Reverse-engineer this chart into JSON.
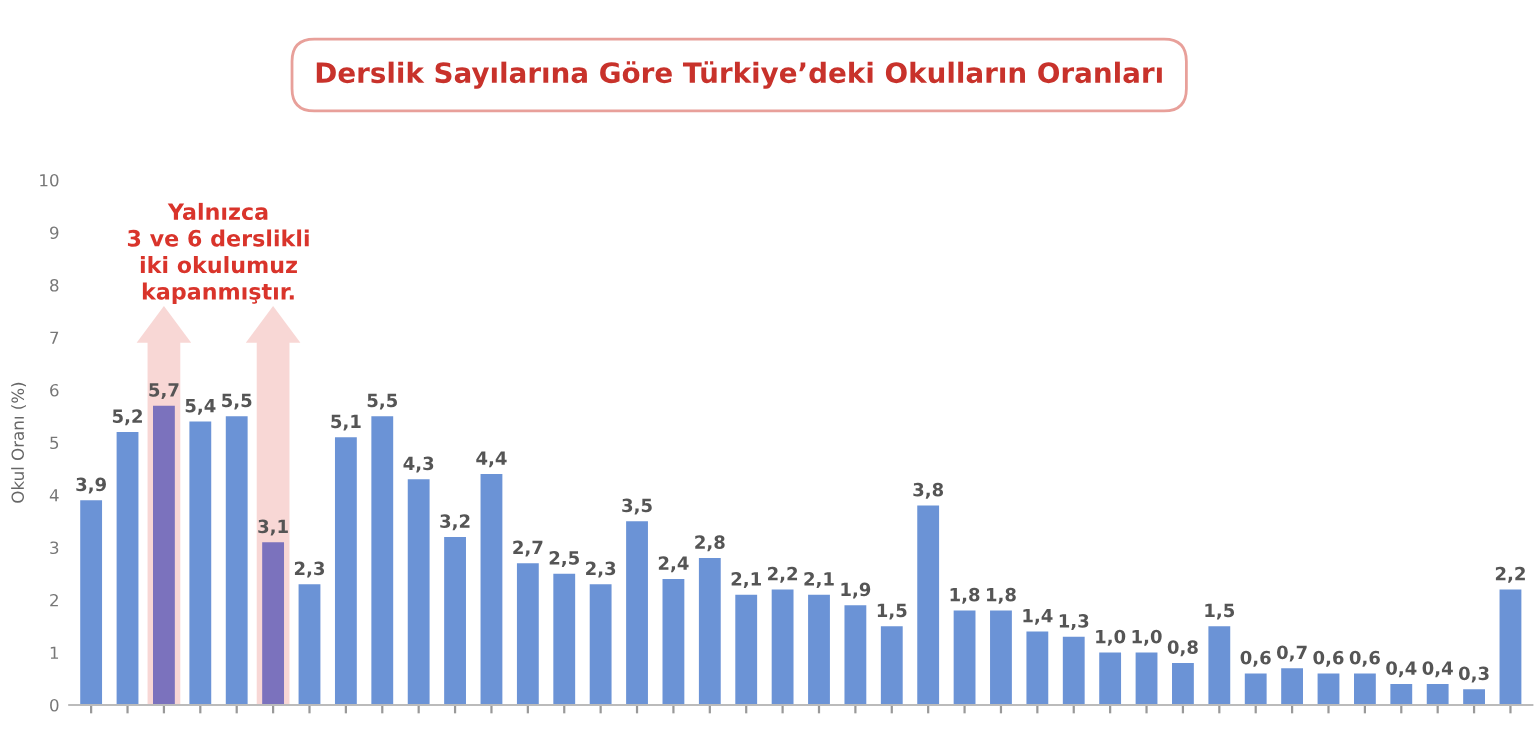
{
  "chart_data": {
    "type": "bar",
    "title": "Derslik Sayılarına Göre Türkiye’deki Okulların Oranları",
    "ylabel": "Okul Oranı (%)",
    "annotations": [
      "Yalnızca\n3 ve 6 derslikli\niki okulumuz\nkapanmıştır."
    ],
    "categories": [
      null,
      null,
      null,
      null,
      null,
      null,
      null,
      null,
      null,
      null,
      null,
      null,
      null,
      null,
      null,
      null,
      null,
      null,
      null,
      null,
      null,
      null,
      null,
      null,
      null,
      null,
      null,
      null,
      null,
      null,
      null,
      null,
      null,
      null,
      null,
      null,
      null,
      null,
      null,
      null
    ],
    "values": [
      3.9,
      5.2,
      5.7,
      5.4,
      5.5,
      3.1,
      2.3,
      5.1,
      5.5,
      4.3,
      3.2,
      4.4,
      2.7,
      2.5,
      2.3,
      3.5,
      2.4,
      2.8,
      2.1,
      2.2,
      2.1,
      1.9,
      1.5,
      3.8,
      1.8,
      1.8,
      1.4,
      1.3,
      1.0,
      1.0,
      0.8,
      1.5,
      0.6,
      0.7,
      0.6,
      0.6,
      0.4,
      0.4,
      0.3,
      2.2
    ],
    "value_labels": [
      "3,9",
      "5,2",
      "5,7",
      "5,4",
      "5,5",
      "3,1",
      "2,3",
      "5,1",
      "5,5",
      "4,3",
      "3,2",
      "4,4",
      "2,7",
      "2,5",
      "2,3",
      "3,5",
      "2,4",
      "2,8",
      "2,1",
      "2,2",
      "2,1",
      "1,9",
      "1,5",
      "3,8",
      "1,8",
      "1,8",
      "1,4",
      "1,3",
      "1,0",
      "1,0",
      "0,8",
      "1,5",
      "0,6",
      "0,7",
      "0,6",
      "0,6",
      "0,4",
      "0,4",
      "0,3",
      "2,2"
    ],
    "colors": [
      "#6b93d6",
      "#6b93d6",
      "#7b72bd",
      "#6b93d6",
      "#6b93d6",
      "#7b72bd",
      "#6b93d6",
      "#6b93d6",
      "#6b93d6",
      "#6b93d6",
      "#6b93d6",
      "#6b93d6",
      "#6b93d6",
      "#6b93d6",
      "#6b93d6",
      "#6b93d6",
      "#6b93d6",
      "#6b93d6",
      "#6b93d6",
      "#6b93d6",
      "#6b93d6",
      "#6b93d6",
      "#6b93d6",
      "#6b93d6",
      "#6b93d6",
      "#6b93d6",
      "#6b93d6",
      "#6b93d6",
      "#6b93d6",
      "#6b93d6",
      "#6b93d6",
      "#6b93d6",
      "#6b93d6",
      "#6b93d6",
      "#6b93d6",
      "#6b93d6",
      "#6b93d6",
      "#6b93d6",
      "#6b93d6",
      "#6b93d6"
    ],
    "ylim": [
      0,
      10
    ],
    "yticks": [
      0,
      1,
      2,
      3,
      4,
      5,
      6,
      7,
      8,
      9,
      10
    ],
    "grid": false,
    "tick_labels": "y"
  }
}
